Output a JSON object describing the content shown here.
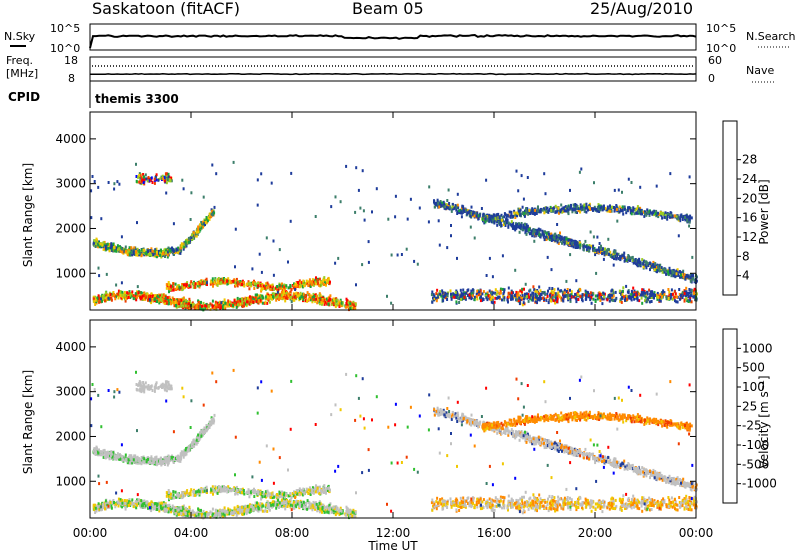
{
  "header": {
    "station": "Saskatoon (fitACF)",
    "beam": "Beam 05",
    "date": "25/Aug/2010"
  },
  "labels": {
    "nsky": "N.Sky",
    "nsearch": "N.Search",
    "freq_line1": "Freq.",
    "freq_line2": "[MHz]",
    "nave": "Nave",
    "cpid": "CPID",
    "cpid_value": "themis 3300",
    "slant_range": "Slant Range [km]",
    "power": "Power [dB]",
    "velocity": "Velocity [m s⁻¹]",
    "x_axis": "Time UT"
  },
  "noise_panel": {
    "left_ticks": [
      "10^5",
      "10^0"
    ],
    "right_ticks": [
      "10^5",
      "10^0"
    ]
  },
  "freq_panel": {
    "left_ticks": [
      "18",
      "8"
    ],
    "right_ticks": [
      "60",
      "0"
    ]
  },
  "chart_data": [
    {
      "type": "heatmap",
      "name": "power",
      "xlabel": "Time UT",
      "ylabel": "Slant Range [km]",
      "x_ticks": [
        "00:00",
        "04:00",
        "08:00",
        "12:00",
        "16:00",
        "20:00",
        "00:00"
      ],
      "xlim_hours": [
        0,
        24
      ],
      "ylim_km": [
        180,
        4600
      ],
      "y_ticks": [
        1000,
        2000,
        3000,
        4000
      ],
      "colorbar": {
        "label": "Power [dB]",
        "ticks": [
          4,
          8,
          12,
          16,
          20,
          24,
          28
        ],
        "range": [
          0,
          30
        ],
        "colors": [
          "#0000ff",
          "#1e3c9b",
          "#3c7e6a",
          "#1aa33a",
          "#9ccd22",
          "#f0c800",
          "#ff8a00",
          "#f03c00",
          "#ff0000"
        ]
      },
      "scatter_regions": [
        {
          "t": [
            0.2,
            4.8
          ],
          "r_start": [
            1800,
            1600
          ],
          "r_mid": [
            1500,
            2200
          ],
          "note": "arc"
        },
        {
          "t": [
            13.5,
            24
          ],
          "r": [
            300,
            2500
          ]
        }
      ]
    },
    {
      "type": "heatmap",
      "name": "velocity",
      "xlabel": "Time UT",
      "ylabel": "Slant Range [km]",
      "x_ticks": [
        "00:00",
        "04:00",
        "08:00",
        "12:00",
        "16:00",
        "20:00",
        "00:00"
      ],
      "xlim_hours": [
        0,
        24
      ],
      "ylim_km": [
        180,
        4600
      ],
      "y_ticks": [
        1000,
        2000,
        3000,
        4000
      ],
      "colorbar": {
        "label": "Velocity [m s⁻¹]",
        "ticks": [
          "1000",
          "500",
          "100",
          "25",
          "-25",
          "-100",
          "-500",
          "-1000"
        ],
        "colors": [
          "#0000ff",
          "#1e3c9b",
          "#3c7e6a",
          "#30c030",
          "#c0c0c0",
          "#f0c800",
          "#ff8a00",
          "#f03c00",
          "#ff0000"
        ]
      }
    }
  ]
}
